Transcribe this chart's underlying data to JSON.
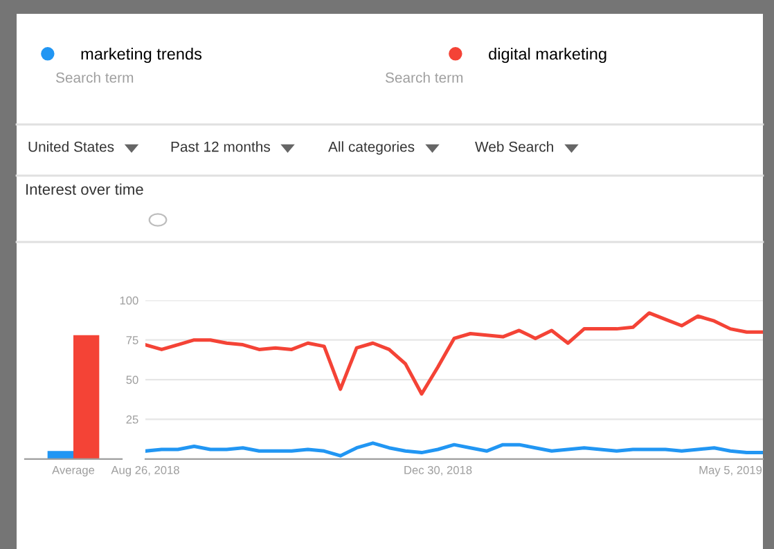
{
  "chart_data": [
    {
      "type": "bar",
      "title": "Interest over time",
      "categories": [
        "Average"
      ],
      "ylim": [
        0,
        100
      ],
      "tick_labels": "x",
      "series": [
        {
          "color": "#2196f3",
          "values": [
            5
          ]
        },
        {
          "color": "#f44336",
          "values": [
            78
          ]
        }
      ]
    },
    {
      "type": "line",
      "annotations": [
        "Search term",
        "Search term",
        "United States",
        "Past 12 months",
        "All categories",
        "Web Search"
      ],
      "x": [
        "2018-08-26",
        "2018-09-02",
        "2018-09-09",
        "2018-09-16",
        "2018-09-23",
        "2018-09-30",
        "2018-10-07",
        "2018-10-14",
        "2018-10-21",
        "2018-10-28",
        "2018-11-04",
        "2018-11-11",
        "2018-11-18",
        "2018-11-25",
        "2018-12-02",
        "2018-12-09",
        "2018-12-16",
        "2018-12-23",
        "2018-12-30",
        "2019-01-06",
        "2019-01-13",
        "2019-01-20",
        "2019-01-27",
        "2019-02-03",
        "2019-02-10",
        "2019-02-17",
        "2019-02-24",
        "2019-03-03",
        "2019-03-10",
        "2019-03-17",
        "2019-03-24",
        "2019-03-31",
        "2019-04-07",
        "2019-04-14",
        "2019-04-21",
        "2019-04-28",
        "2019-05-05",
        "2019-05-12",
        "2019-05-19"
      ],
      "series": [
        {
          "name": "marketing trends",
          "color": "#2196f3",
          "values": [
            5,
            6,
            6,
            8,
            6,
            6,
            7,
            5,
            5,
            5,
            6,
            5,
            2,
            7,
            10,
            7,
            5,
            4,
            6,
            9,
            7,
            5,
            9,
            9,
            7,
            5,
            6,
            7,
            6,
            5,
            6,
            6,
            6,
            5,
            6,
            7,
            5,
            4,
            4
          ]
        },
        {
          "name": "digital marketing",
          "color": "#f44336",
          "values": [
            72,
            69,
            72,
            75,
            75,
            73,
            72,
            69,
            70,
            69,
            73,
            71,
            44,
            70,
            73,
            69,
            60,
            41,
            58,
            76,
            79,
            78,
            77,
            81,
            76,
            81,
            73,
            82,
            82,
            82,
            83,
            92,
            88,
            84,
            90,
            87,
            82,
            80,
            80
          ]
        }
      ],
      "xlim": [
        "2018-08-26",
        "2019-05-19"
      ],
      "xticks": [
        {
          "value": "2018-08-26",
          "label": "Aug 26, 2018"
        },
        {
          "value": "2018-12-30",
          "label": "Dec 30, 2018"
        },
        {
          "value": "2019-05-05",
          "label": "May 5, 2019"
        }
      ],
      "ylim": [
        0,
        100
      ],
      "yticks": [
        25,
        50,
        75,
        100
      ],
      "grid": "y",
      "legend": "top",
      "marker": "none",
      "line_style": "solid"
    }
  ]
}
